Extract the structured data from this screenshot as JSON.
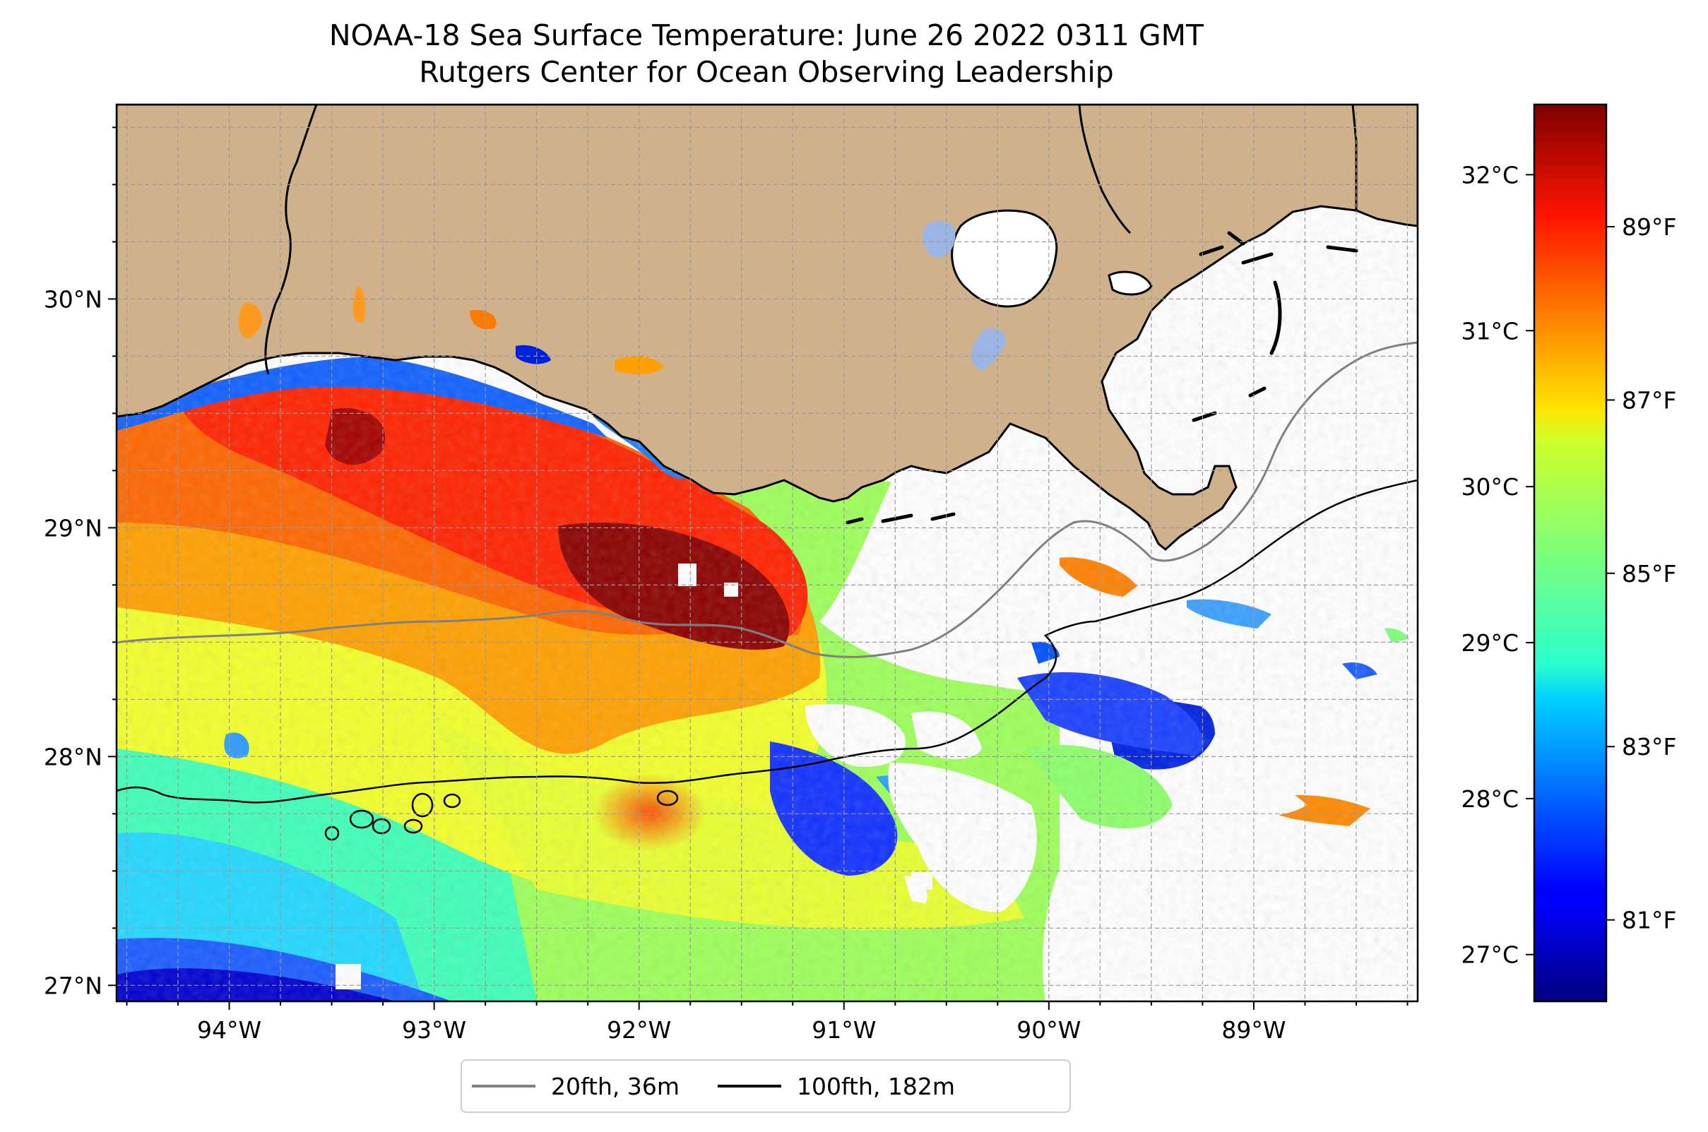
{
  "title": "NOAA-18 Sea Surface Temperature: June 26 2022 0311 GMT",
  "subtitle": "Rutgers Center for Ocean Observing Leadership",
  "map": {
    "lon_range": [
      -94.55,
      -88.2
    ],
    "lat_range": [
      26.93,
      30.85
    ],
    "x_ticks": [
      {
        "value": -94,
        "label": "94°W"
      },
      {
        "value": -93,
        "label": "93°W"
      },
      {
        "value": -92,
        "label": "92°W"
      },
      {
        "value": -91,
        "label": "91°W"
      },
      {
        "value": -90,
        "label": "90°W"
      },
      {
        "value": -89,
        "label": "89°W"
      }
    ],
    "y_ticks": [
      {
        "value": 27,
        "label": "27°N"
      },
      {
        "value": 28,
        "label": "28°N"
      },
      {
        "value": 29,
        "label": "29°N"
      },
      {
        "value": 30,
        "label": "30°N"
      }
    ],
    "grid": true,
    "grid_interval_deg": 0.25,
    "land_color": "#cfb28c",
    "lake_color": "#9cb4e3"
  },
  "colorbar": {
    "colormap": "jet",
    "range_c": [
      26.7,
      32.45
    ],
    "celsius_ticks": [
      {
        "value": 27,
        "label": "27°C"
      },
      {
        "value": 28,
        "label": "28°C"
      },
      {
        "value": 29,
        "label": "29°C"
      },
      {
        "value": 30,
        "label": "30°C"
      },
      {
        "value": 31,
        "label": "31°C"
      },
      {
        "value": 32,
        "label": "32°C"
      }
    ],
    "fahrenheit_ticks": [
      {
        "value": 81,
        "label": "81°F"
      },
      {
        "value": 83,
        "label": "83°F"
      },
      {
        "value": 85,
        "label": "85°F"
      },
      {
        "value": 87,
        "label": "87°F"
      },
      {
        "value": 89,
        "label": "89°F"
      }
    ]
  },
  "legend": {
    "items": [
      {
        "label": "20fth, 36m",
        "color": "#808080"
      },
      {
        "label": "100fth, 182m",
        "color": "#000000"
      }
    ]
  }
}
